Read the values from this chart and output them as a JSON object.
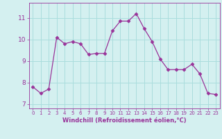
{
  "x": [
    0,
    1,
    2,
    3,
    4,
    5,
    6,
    7,
    8,
    9,
    10,
    11,
    12,
    13,
    14,
    15,
    16,
    17,
    18,
    19,
    20,
    21,
    22,
    23
  ],
  "y": [
    7.8,
    7.5,
    7.7,
    10.1,
    9.8,
    9.9,
    9.8,
    9.3,
    9.35,
    9.35,
    10.4,
    10.85,
    10.85,
    11.2,
    10.5,
    9.9,
    9.1,
    8.6,
    8.6,
    8.6,
    8.85,
    8.4,
    7.5,
    7.45
  ],
  "line_color": "#993399",
  "marker": "D",
  "marker_size": 2.5,
  "background_color": "#d4f0f0",
  "grid_color": "#aadddd",
  "xlabel": "Windchill (Refroidissement éolien,°C)",
  "xlabel_color": "#993399",
  "tick_color": "#993399",
  "xlim": [
    -0.5,
    23.5
  ],
  "ylim": [
    6.8,
    11.7
  ],
  "yticks": [
    7,
    8,
    9,
    10,
    11
  ],
  "xticks": [
    0,
    1,
    2,
    3,
    4,
    5,
    6,
    7,
    8,
    9,
    10,
    11,
    12,
    13,
    14,
    15,
    16,
    17,
    18,
    19,
    20,
    21,
    22,
    23
  ],
  "title": ""
}
